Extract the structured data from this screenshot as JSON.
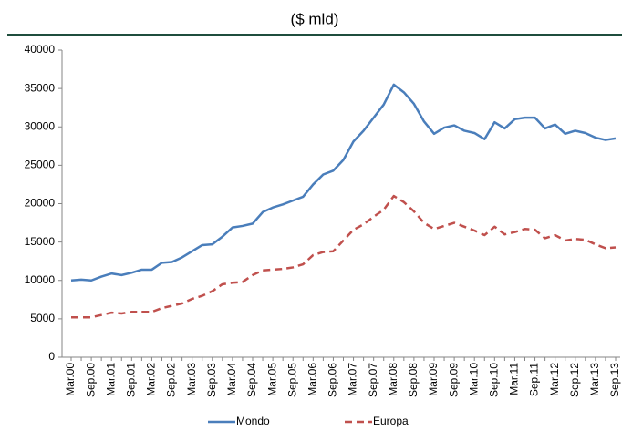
{
  "chart_data": {
    "type": "line",
    "title": "($ mld)",
    "categories": [
      "Mar.00",
      null,
      "Sep.00",
      null,
      "Mar.01",
      null,
      "Sep.01",
      null,
      "Mar.02",
      null,
      "Sep.02",
      null,
      "Mar.03",
      null,
      "Sep.03",
      null,
      "Mar.04",
      null,
      "Sep.04",
      null,
      "Mar.05",
      null,
      "Sep.05",
      null,
      "Mar.06",
      null,
      "Sep.06",
      null,
      "Mar.07",
      null,
      "Sep.07",
      null,
      "Mar.08",
      null,
      "Sep.08",
      null,
      "Mar.09",
      null,
      "Sep.09",
      null,
      "Mar.10",
      null,
      "Sep.10",
      null,
      "Mar.11",
      null,
      "Sep.11",
      null,
      "Mar.12",
      null,
      "Sep.12",
      null,
      "Mar.13",
      null,
      "Sep.13"
    ],
    "series": [
      {
        "name": "Mondo",
        "color": "#4a7ebb",
        "dash": false,
        "values": [
          10000,
          10100,
          10000,
          10500,
          10900,
          10700,
          11000,
          11400,
          11400,
          12300,
          12400,
          13000,
          13800,
          14600,
          14700,
          15700,
          16900,
          17100,
          17400,
          18900,
          19500,
          19900,
          20400,
          20900,
          22500,
          23800,
          24300,
          25700,
          28100,
          29500,
          31200,
          32900,
          35500,
          34500,
          33000,
          30700,
          29100,
          29900,
          30200,
          29500,
          29200,
          28400,
          30600,
          29800,
          31000,
          31200,
          31200,
          29800,
          30300,
          29100,
          29500,
          29200,
          28600,
          28300,
          28500
        ]
      },
      {
        "name": "Europa",
        "color": "#c0504d",
        "dash": true,
        "values": [
          5200,
          5200,
          5200,
          5500,
          5800,
          5700,
          5900,
          5900,
          5900,
          6400,
          6700,
          7000,
          7600,
          8000,
          8600,
          9500,
          9700,
          9800,
          10700,
          11300,
          11400,
          11500,
          11700,
          12100,
          13300,
          13700,
          13800,
          15200,
          16600,
          17300,
          18300,
          19200,
          21000,
          20200,
          19000,
          17500,
          16700,
          17100,
          17500,
          17000,
          16500,
          15900,
          17000,
          16000,
          16300,
          16700,
          16600,
          15500,
          15900,
          15200,
          15400,
          15300,
          14700,
          14200,
          14300
        ]
      }
    ],
    "ylim": [
      0,
      40000
    ],
    "yticks": [
      0,
      5000,
      10000,
      15000,
      20000,
      25000,
      30000,
      35000,
      40000
    ]
  }
}
